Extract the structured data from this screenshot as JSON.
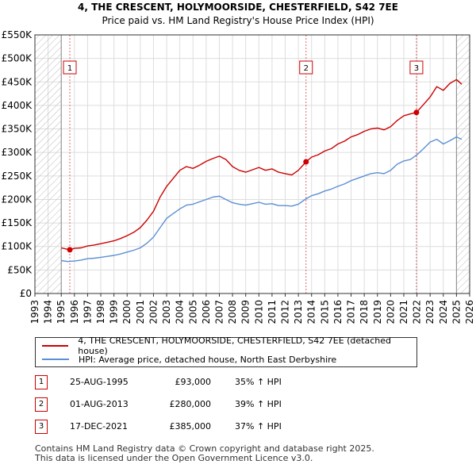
{
  "chart_data": {
    "type": "line",
    "title": "4, THE CRESCENT, HOLYMOORSIDE, CHESTERFIELD, S42 7EE",
    "subtitle": "Price paid vs. HM Land Registry's House Price Index (HPI)",
    "xlim": [
      1993,
      2026
    ],
    "ylim": [
      0,
      550000
    ],
    "x_ticks": [
      "1993",
      "1994",
      "1995",
      "1996",
      "1997",
      "1998",
      "1999",
      "2000",
      "2001",
      "2002",
      "2003",
      "2004",
      "2005",
      "2006",
      "2007",
      "2008",
      "2009",
      "2010",
      "2011",
      "2012",
      "2013",
      "2014",
      "2015",
      "2016",
      "2017",
      "2018",
      "2019",
      "2020",
      "2021",
      "2022",
      "2023",
      "2024",
      "2025",
      "2026"
    ],
    "y_ticks": [
      {
        "value": 0,
        "label": "£0"
      },
      {
        "value": 50000,
        "label": "£50K"
      },
      {
        "value": 100000,
        "label": "£100K"
      },
      {
        "value": 150000,
        "label": "£150K"
      },
      {
        "value": 200000,
        "label": "£200K"
      },
      {
        "value": 250000,
        "label": "£250K"
      },
      {
        "value": 300000,
        "label": "£300K"
      },
      {
        "value": 350000,
        "label": "£350K"
      },
      {
        "value": 400000,
        "label": "£400K"
      },
      {
        "value": 450000,
        "label": "£450K"
      },
      {
        "value": 500000,
        "label": "£500K"
      },
      {
        "value": 550000,
        "label": "£550K"
      }
    ],
    "hatch_before": 1995.0,
    "hatch_after": 2025.0,
    "series": [
      {
        "name": "4, THE CRESCENT, HOLYMOORSIDE, CHESTERFIELD, S42 7EE (detached house)",
        "color": "#cc0000",
        "x": [
          1995.0,
          1995.65,
          1996.0,
          1996.5,
          1997.0,
          1997.5,
          1998.0,
          1998.5,
          1999.0,
          1999.5,
          2000.0,
          2000.5,
          2001.0,
          2001.5,
          2002.0,
          2002.5,
          2003.0,
          2003.5,
          2004.0,
          2004.5,
          2005.0,
          2005.5,
          2006.0,
          2006.5,
          2007.0,
          2007.5,
          2008.0,
          2008.5,
          2009.0,
          2009.5,
          2010.0,
          2010.5,
          2011.0,
          2011.5,
          2012.0,
          2012.5,
          2013.0,
          2013.58,
          2014.0,
          2014.5,
          2015.0,
          2015.5,
          2016.0,
          2016.5,
          2017.0,
          2017.5,
          2018.0,
          2018.5,
          2019.0,
          2019.5,
          2020.0,
          2020.5,
          2021.0,
          2021.5,
          2021.96,
          2022.5,
          2023.0,
          2023.5,
          2024.0,
          2024.5,
          2025.0,
          2025.4
        ],
        "values": [
          97000,
          93000,
          96000,
          97000,
          101000,
          103000,
          106000,
          109000,
          112000,
          117000,
          123000,
          130000,
          140000,
          156000,
          175000,
          205000,
          228000,
          245000,
          262000,
          270000,
          266000,
          273000,
          281000,
          287000,
          292000,
          285000,
          270000,
          262000,
          258000,
          263000,
          268000,
          262000,
          265000,
          258000,
          255000,
          252000,
          262000,
          280000,
          290000,
          295000,
          303000,
          308000,
          318000,
          324000,
          333000,
          338000,
          345000,
          350000,
          352000,
          348000,
          355000,
          368000,
          378000,
          382000,
          385000,
          402000,
          418000,
          440000,
          432000,
          447000,
          455000,
          445000
        ]
      },
      {
        "name": "HPI: Average price, detached house, North East Derbyshire",
        "color": "#5b8fd4",
        "x": [
          1995.0,
          1995.5,
          1996.0,
          1996.5,
          1997.0,
          1997.5,
          1998.0,
          1998.5,
          1999.0,
          1999.5,
          2000.0,
          2000.5,
          2001.0,
          2001.5,
          2002.0,
          2002.5,
          2003.0,
          2003.5,
          2004.0,
          2004.5,
          2005.0,
          2005.5,
          2006.0,
          2006.5,
          2007.0,
          2007.5,
          2008.0,
          2008.5,
          2009.0,
          2009.5,
          2010.0,
          2010.5,
          2011.0,
          2011.5,
          2012.0,
          2012.5,
          2013.0,
          2013.5,
          2014.0,
          2014.5,
          2015.0,
          2015.5,
          2016.0,
          2016.5,
          2017.0,
          2017.5,
          2018.0,
          2018.5,
          2019.0,
          2019.5,
          2020.0,
          2020.5,
          2021.0,
          2021.5,
          2022.0,
          2022.5,
          2023.0,
          2023.5,
          2024.0,
          2024.5,
          2025.0,
          2025.4
        ],
        "values": [
          70000,
          68000,
          69000,
          71000,
          74000,
          75000,
          77000,
          79000,
          81000,
          84000,
          88000,
          92000,
          97000,
          107000,
          120000,
          140000,
          160000,
          170000,
          180000,
          188000,
          190000,
          195000,
          200000,
          205000,
          207000,
          200000,
          193000,
          190000,
          188000,
          191000,
          194000,
          190000,
          191000,
          187000,
          187000,
          186000,
          190000,
          200000,
          208000,
          212000,
          218000,
          222000,
          228000,
          233000,
          240000,
          245000,
          250000,
          255000,
          257000,
          255000,
          262000,
          275000,
          282000,
          285000,
          295000,
          308000,
          322000,
          328000,
          318000,
          325000,
          333000,
          328000
        ]
      }
    ],
    "sales": [
      {
        "label": "1",
        "x": 1995.65,
        "value": 93000
      },
      {
        "label": "2",
        "x": 2013.58,
        "value": 280000
      },
      {
        "label": "3",
        "x": 2021.96,
        "value": 385000
      }
    ]
  },
  "legend": {
    "property_label": "4, THE CRESCENT, HOLYMOORSIDE, CHESTERFIELD, S42 7EE (detached house)",
    "hpi_label": "HPI: Average price, detached house, North East Derbyshire"
  },
  "sales_table": [
    {
      "num": "1",
      "date": "25-AUG-1995",
      "price": "£93,000",
      "hpi": "35% ↑ HPI"
    },
    {
      "num": "2",
      "date": "01-AUG-2013",
      "price": "£280,000",
      "hpi": "39% ↑ HPI"
    },
    {
      "num": "3",
      "date": "17-DEC-2021",
      "price": "£385,000",
      "hpi": "37% ↑ HPI"
    }
  ],
  "footer": {
    "line1": "Contains HM Land Registry data © Crown copyright and database right 2025.",
    "line2": "This data is licensed under the Open Government Licence v3.0."
  },
  "colors": {
    "property": "#cc0000",
    "hpi": "#5b8fd4",
    "grid": "#dddddd"
  }
}
